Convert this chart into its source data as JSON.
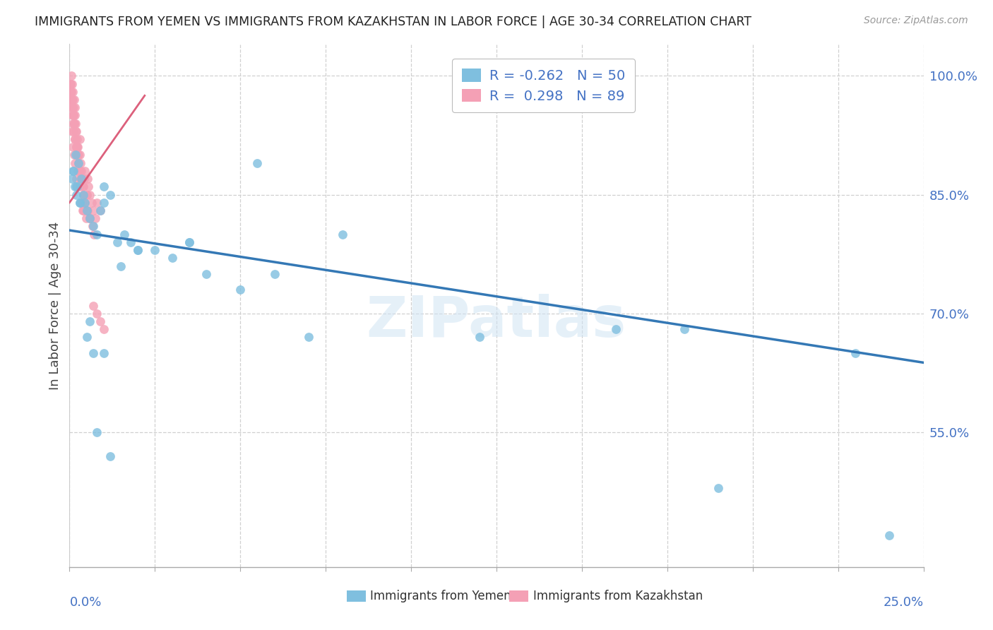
{
  "title": "IMMIGRANTS FROM YEMEN VS IMMIGRANTS FROM KAZAKHSTAN IN LABOR FORCE | AGE 30-34 CORRELATION CHART",
  "source": "Source: ZipAtlas.com",
  "ylabel": "In Labor Force | Age 30-34",
  "ylabel_right_ticks": [
    1.0,
    0.85,
    0.7,
    0.55
  ],
  "ylabel_right_labels": [
    "100.0%",
    "85.0%",
    "70.0%",
    "55.0%"
  ],
  "xlim": [
    0.0,
    0.25
  ],
  "ylim": [
    0.38,
    1.04
  ],
  "blue_R": -0.262,
  "blue_N": 50,
  "pink_R": 0.298,
  "pink_N": 89,
  "blue_color": "#7fbfdf",
  "pink_color": "#f4a0b5",
  "blue_line_color": "#3478b5",
  "pink_line_color": "#d94f6e",
  "blue_label": "Immigrants from Yemen",
  "pink_label": "Immigrants from Kazakhstan",
  "watermark": "ZIPatlas",
  "blue_trend_x": [
    0.0,
    0.25
  ],
  "blue_trend_y": [
    0.805,
    0.638
  ],
  "pink_trend_x": [
    0.0,
    0.022
  ],
  "pink_trend_y": [
    0.84,
    0.975
  ],
  "blue_scatter_x": [
    0.0008,
    0.0012,
    0.0015,
    0.0018,
    0.002,
    0.0022,
    0.0025,
    0.003,
    0.0035,
    0.004,
    0.0045,
    0.005,
    0.006,
    0.007,
    0.008,
    0.009,
    0.01,
    0.012,
    0.014,
    0.016,
    0.018,
    0.02,
    0.025,
    0.03,
    0.035,
    0.04,
    0.05,
    0.06,
    0.07,
    0.08,
    0.001,
    0.002,
    0.003,
    0.005,
    0.007,
    0.01,
    0.015,
    0.02,
    0.035,
    0.055,
    0.12,
    0.16,
    0.19,
    0.23,
    0.24,
    0.008,
    0.012,
    0.006,
    0.18,
    0.01
  ],
  "blue_scatter_y": [
    0.87,
    0.88,
    0.86,
    0.9,
    0.85,
    0.86,
    0.89,
    0.84,
    0.87,
    0.85,
    0.84,
    0.83,
    0.82,
    0.81,
    0.8,
    0.83,
    0.84,
    0.85,
    0.79,
    0.8,
    0.79,
    0.78,
    0.78,
    0.77,
    0.79,
    0.75,
    0.73,
    0.75,
    0.67,
    0.8,
    0.88,
    0.86,
    0.84,
    0.67,
    0.65,
    0.65,
    0.76,
    0.78,
    0.79,
    0.89,
    0.67,
    0.68,
    0.48,
    0.65,
    0.42,
    0.55,
    0.52,
    0.69,
    0.68,
    0.86
  ],
  "pink_scatter_x": [
    0.0002,
    0.0003,
    0.0004,
    0.0005,
    0.0006,
    0.0007,
    0.0008,
    0.0009,
    0.001,
    0.0011,
    0.0012,
    0.0013,
    0.0014,
    0.0015,
    0.0016,
    0.0017,
    0.0018,
    0.002,
    0.0021,
    0.0022,
    0.0023,
    0.0024,
    0.0025,
    0.003,
    0.0031,
    0.0032,
    0.0034,
    0.0035,
    0.004,
    0.0042,
    0.0045,
    0.005,
    0.0052,
    0.0055,
    0.006,
    0.0065,
    0.007,
    0.0075,
    0.008,
    0.009,
    0.0003,
    0.0005,
    0.0007,
    0.001,
    0.0012,
    0.0015,
    0.002,
    0.0025,
    0.003,
    0.004,
    0.0004,
    0.0006,
    0.0008,
    0.0011,
    0.0013,
    0.0016,
    0.0019,
    0.0022,
    0.0028,
    0.0033,
    0.0036,
    0.0038,
    0.004,
    0.0043,
    0.0048,
    0.005,
    0.0053,
    0.006,
    0.0068,
    0.0072,
    0.0003,
    0.0005,
    0.0007,
    0.001,
    0.0013,
    0.0016,
    0.002,
    0.0024,
    0.003,
    0.0035,
    0.0038,
    0.004,
    0.0045,
    0.005,
    0.006,
    0.007,
    0.008,
    0.009,
    0.01
  ],
  "pink_scatter_y": [
    0.98,
    0.99,
    0.97,
    1.0,
    0.98,
    0.99,
    0.97,
    0.98,
    0.97,
    0.96,
    0.95,
    0.94,
    0.97,
    0.96,
    0.95,
    0.93,
    0.94,
    0.93,
    0.92,
    0.91,
    0.9,
    0.91,
    0.89,
    0.92,
    0.9,
    0.89,
    0.88,
    0.87,
    0.86,
    0.87,
    0.88,
    0.85,
    0.87,
    0.86,
    0.85,
    0.84,
    0.83,
    0.82,
    0.84,
    0.83,
    0.98,
    0.97,
    0.95,
    0.94,
    0.93,
    0.92,
    0.91,
    0.9,
    0.88,
    0.85,
    0.99,
    0.97,
    0.96,
    0.95,
    0.94,
    0.92,
    0.91,
    0.9,
    0.88,
    0.87,
    0.84,
    0.86,
    0.83,
    0.84,
    0.82,
    0.85,
    0.83,
    0.82,
    0.81,
    0.8,
    0.98,
    0.96,
    0.93,
    0.91,
    0.9,
    0.89,
    0.87,
    0.88,
    0.86,
    0.84,
    0.83,
    0.85,
    0.84,
    0.83,
    0.82,
    0.71,
    0.7,
    0.69,
    0.68
  ]
}
